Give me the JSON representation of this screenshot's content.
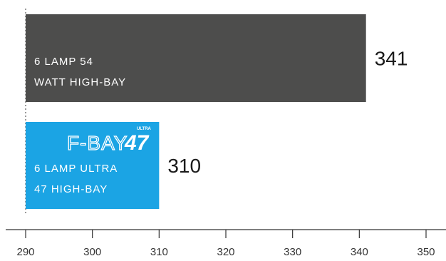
{
  "chart_data": {
    "type": "bar",
    "orientation": "horizontal",
    "categories": [
      "6 LAMP 54 WATT HIGH-BAY",
      "6 LAMP ULTRA 47 HIGH-BAY"
    ],
    "category_lines": [
      [
        "6 LAMP 54",
        "WATT HIGH-BAY"
      ],
      [
        "6 LAMP ULTRA",
        "47 HIGH-BAY"
      ]
    ],
    "values": [
      341,
      310
    ],
    "value_labels": [
      "341",
      "310"
    ],
    "xlim": [
      290,
      350
    ],
    "xticks": [
      290,
      300,
      310,
      320,
      330,
      340,
      350
    ],
    "xtick_labels": [
      "290",
      "300",
      "310",
      "320",
      "330",
      "340",
      "350"
    ],
    "grid": false,
    "colors": [
      "#4d4d4c",
      "#1ba4e4"
    ],
    "logo": {
      "text": "F-BAY",
      "number": "47",
      "superscript": "ULTRA"
    }
  }
}
